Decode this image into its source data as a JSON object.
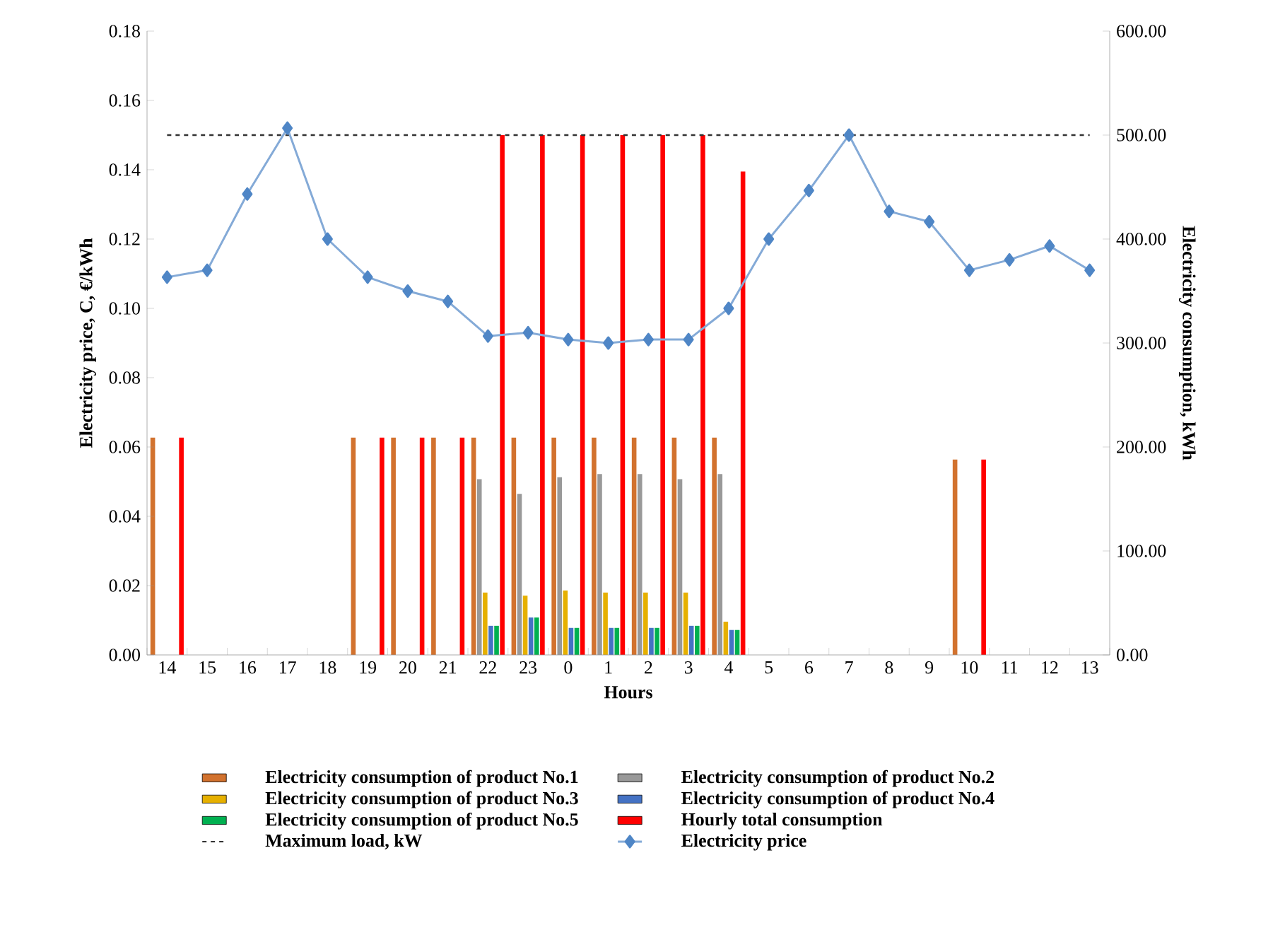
{
  "chart_data": {
    "type": "bar",
    "xlabel": "Hours",
    "ylabel": "Electricity price, C, €/kWh",
    "y2label": "Electricity consumption, kWh",
    "categories": [
      "14",
      "15",
      "16",
      "17",
      "18",
      "19",
      "20",
      "21",
      "22",
      "23",
      "0",
      "1",
      "2",
      "3",
      "4",
      "5",
      "6",
      "7",
      "8",
      "9",
      "10",
      "11",
      "12",
      "13"
    ],
    "series": [
      {
        "name": "Electricity consumption of product No.1",
        "color": "#d2722e",
        "axis": "y2",
        "values": [
          209,
          null,
          null,
          null,
          null,
          209,
          209,
          209,
          209,
          209,
          209,
          209,
          209,
          209,
          209,
          null,
          null,
          null,
          null,
          null,
          188,
          null,
          null,
          null
        ]
      },
      {
        "name": "Electricity consumption of product No.2",
        "color": "#999999",
        "axis": "y2",
        "values": [
          null,
          null,
          null,
          null,
          null,
          null,
          null,
          null,
          169,
          155,
          171,
          174,
          174,
          169,
          174,
          null,
          null,
          null,
          null,
          null,
          null,
          null,
          null,
          null
        ]
      },
      {
        "name": "Electricity consumption of product No.3",
        "color": "#e6b000",
        "axis": "y2",
        "values": [
          null,
          null,
          null,
          null,
          null,
          null,
          null,
          null,
          60,
          57,
          62,
          60,
          60,
          60,
          32,
          null,
          null,
          null,
          null,
          null,
          null,
          null,
          null,
          null
        ]
      },
      {
        "name": "Electricity consumption of product No.4",
        "color": "#4472c4",
        "axis": "y2",
        "values": [
          null,
          null,
          null,
          null,
          null,
          null,
          null,
          null,
          28,
          36,
          26,
          26,
          26,
          28,
          24,
          null,
          null,
          null,
          null,
          null,
          null,
          null,
          null,
          null
        ]
      },
      {
        "name": "Electricity consumption of product No.5",
        "color": "#00b050",
        "axis": "y2",
        "values": [
          null,
          null,
          null,
          null,
          null,
          null,
          null,
          null,
          28,
          36,
          26,
          26,
          26,
          28,
          24,
          null,
          null,
          null,
          null,
          null,
          null,
          null,
          null,
          null
        ]
      },
      {
        "name": "Hourly total consumption",
        "color": "#ff0000",
        "axis": "y2",
        "values": [
          209,
          null,
          null,
          null,
          null,
          209,
          209,
          209,
          500,
          500,
          500,
          500,
          500,
          500,
          465,
          null,
          null,
          null,
          null,
          null,
          188,
          null,
          null,
          null
        ]
      },
      {
        "name": "Electricity price",
        "type": "line",
        "color": "#4f86c6",
        "values": [
          0.109,
          0.111,
          0.133,
          0.152,
          0.12,
          0.109,
          0.105,
          0.102,
          0.092,
          0.093,
          0.091,
          0.09,
          0.091,
          0.091,
          0.1,
          0.12,
          0.134,
          0.15,
          0.128,
          0.125,
          0.111,
          0.114,
          0.118,
          0.111
        ]
      }
    ],
    "ylim": [
      0,
      0.18
    ],
    "yticks": [
      {
        "value": 0,
        "label": "0.00"
      },
      {
        "value": 0.02,
        "label": "0.02"
      },
      {
        "value": 0.04,
        "label": "0.04"
      },
      {
        "value": 0.06,
        "label": "0.06"
      },
      {
        "value": 0.08,
        "label": "0.08"
      },
      {
        "value": 0.1,
        "label": "0.10"
      },
      {
        "value": 0.12,
        "label": "0.12"
      },
      {
        "value": 0.14,
        "label": "0.14"
      },
      {
        "value": 0.16,
        "label": "0.16"
      },
      {
        "value": 0.18,
        "label": "0.18"
      }
    ],
    "y2lim": [
      0,
      600
    ],
    "y2ticks": [
      {
        "value": 0,
        "label": "0.00"
      },
      {
        "value": 100,
        "label": "100.00"
      },
      {
        "value": 200,
        "label": "200.00"
      },
      {
        "value": 300,
        "label": "300.00"
      },
      {
        "value": 400,
        "label": "400.00"
      },
      {
        "value": 500,
        "label": "500.00"
      },
      {
        "value": 600,
        "label": "600.00"
      }
    ],
    "ref_lines": [
      {
        "axis": "y2",
        "value": 500,
        "label": "Maximum load, kW",
        "color": "#333333",
        "line_style": "dashed"
      }
    ],
    "marker": "diamond",
    "legend": "bottom",
    "grid": false
  }
}
